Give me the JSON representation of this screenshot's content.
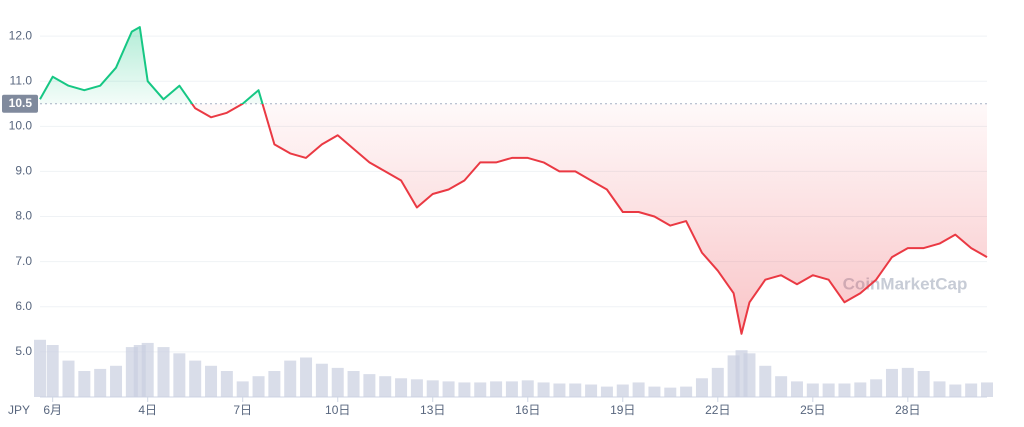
{
  "chart_data": {
    "type": "line",
    "currency": "JPY",
    "watermark": "CoinMarketCap",
    "x": [
      0.6,
      1,
      1.5,
      2,
      2.5,
      3,
      3.5,
      3.75,
      4,
      4.5,
      5,
      5.5,
      6,
      6.5,
      7,
      7.5,
      8,
      8.5,
      9,
      9.5,
      10,
      10.5,
      11,
      11.5,
      12,
      12.5,
      13,
      13.5,
      14,
      14.5,
      15,
      15.5,
      16,
      16.5,
      17,
      17.5,
      18,
      18.5,
      19,
      19.5,
      20,
      20.5,
      21,
      21.5,
      22,
      22.5,
      22.75,
      23,
      23.5,
      24,
      24.5,
      25,
      25.5,
      26,
      26.5,
      27,
      27.5,
      28,
      28.5,
      29,
      29.5,
      30,
      30.5
    ],
    "values": [
      10.6,
      11.1,
      10.9,
      10.8,
      10.9,
      11.3,
      12.1,
      12.2,
      11.0,
      10.6,
      10.9,
      10.4,
      10.2,
      10.3,
      10.5,
      10.8,
      9.6,
      9.4,
      9.3,
      9.6,
      9.8,
      9.5,
      9.2,
      9.0,
      8.8,
      8.2,
      8.5,
      8.6,
      8.8,
      9.2,
      9.2,
      9.3,
      9.3,
      9.2,
      9.0,
      9.0,
      8.8,
      8.6,
      8.1,
      8.1,
      8.0,
      7.8,
      7.9,
      7.2,
      6.8,
      6.3,
      5.4,
      6.1,
      6.6,
      6.7,
      6.5,
      6.7,
      6.6,
      6.1,
      6.3,
      6.6,
      7.1,
      7.3,
      7.3,
      7.4,
      7.6,
      7.3,
      7.1
    ],
    "volume": [
      55,
      50,
      35,
      25,
      27,
      30,
      48,
      50,
      52,
      48,
      42,
      35,
      30,
      25,
      15,
      20,
      25,
      35,
      38,
      32,
      28,
      25,
      22,
      20,
      18,
      17,
      16,
      15,
      14,
      14,
      15,
      15,
      16,
      14,
      13,
      13,
      12,
      10,
      12,
      14,
      10,
      9,
      10,
      18,
      28,
      40,
      45,
      42,
      30,
      20,
      15,
      13,
      13,
      13,
      14,
      17,
      27,
      28,
      25,
      15,
      12,
      13,
      14
    ],
    "baseline": 10.5,
    "up_color": "#16c784",
    "down_color": "#ea3943",
    "volume_color": "#c9cfe0",
    "xlim": [
      0.6,
      30.5
    ],
    "ylim": [
      4.0,
      12.8
    ],
    "y2lim": [
      0,
      100
    ],
    "xticks": [
      {
        "value": 1,
        "label": "6月"
      },
      {
        "value": 4,
        "label": "4日"
      },
      {
        "value": 7,
        "label": "7日"
      },
      {
        "value": 10,
        "label": "10日"
      },
      {
        "value": 13,
        "label": "13日"
      },
      {
        "value": 16,
        "label": "16日"
      },
      {
        "value": 19,
        "label": "19日"
      },
      {
        "value": 22,
        "label": "22日"
      },
      {
        "value": 25,
        "label": "25日"
      },
      {
        "value": 28,
        "label": "28日"
      }
    ],
    "yticks": [
      {
        "value": 5,
        "label": "5.0"
      },
      {
        "value": 6,
        "label": "6.0"
      },
      {
        "value": 7,
        "label": "7.0"
      },
      {
        "value": 8,
        "label": "8.0"
      },
      {
        "value": 9,
        "label": "9.0"
      },
      {
        "value": 10,
        "label": "10.0"
      },
      {
        "value": 11,
        "label": "11.0"
      },
      {
        "value": 12,
        "label": "12.0"
      }
    ],
    "grid": true
  }
}
